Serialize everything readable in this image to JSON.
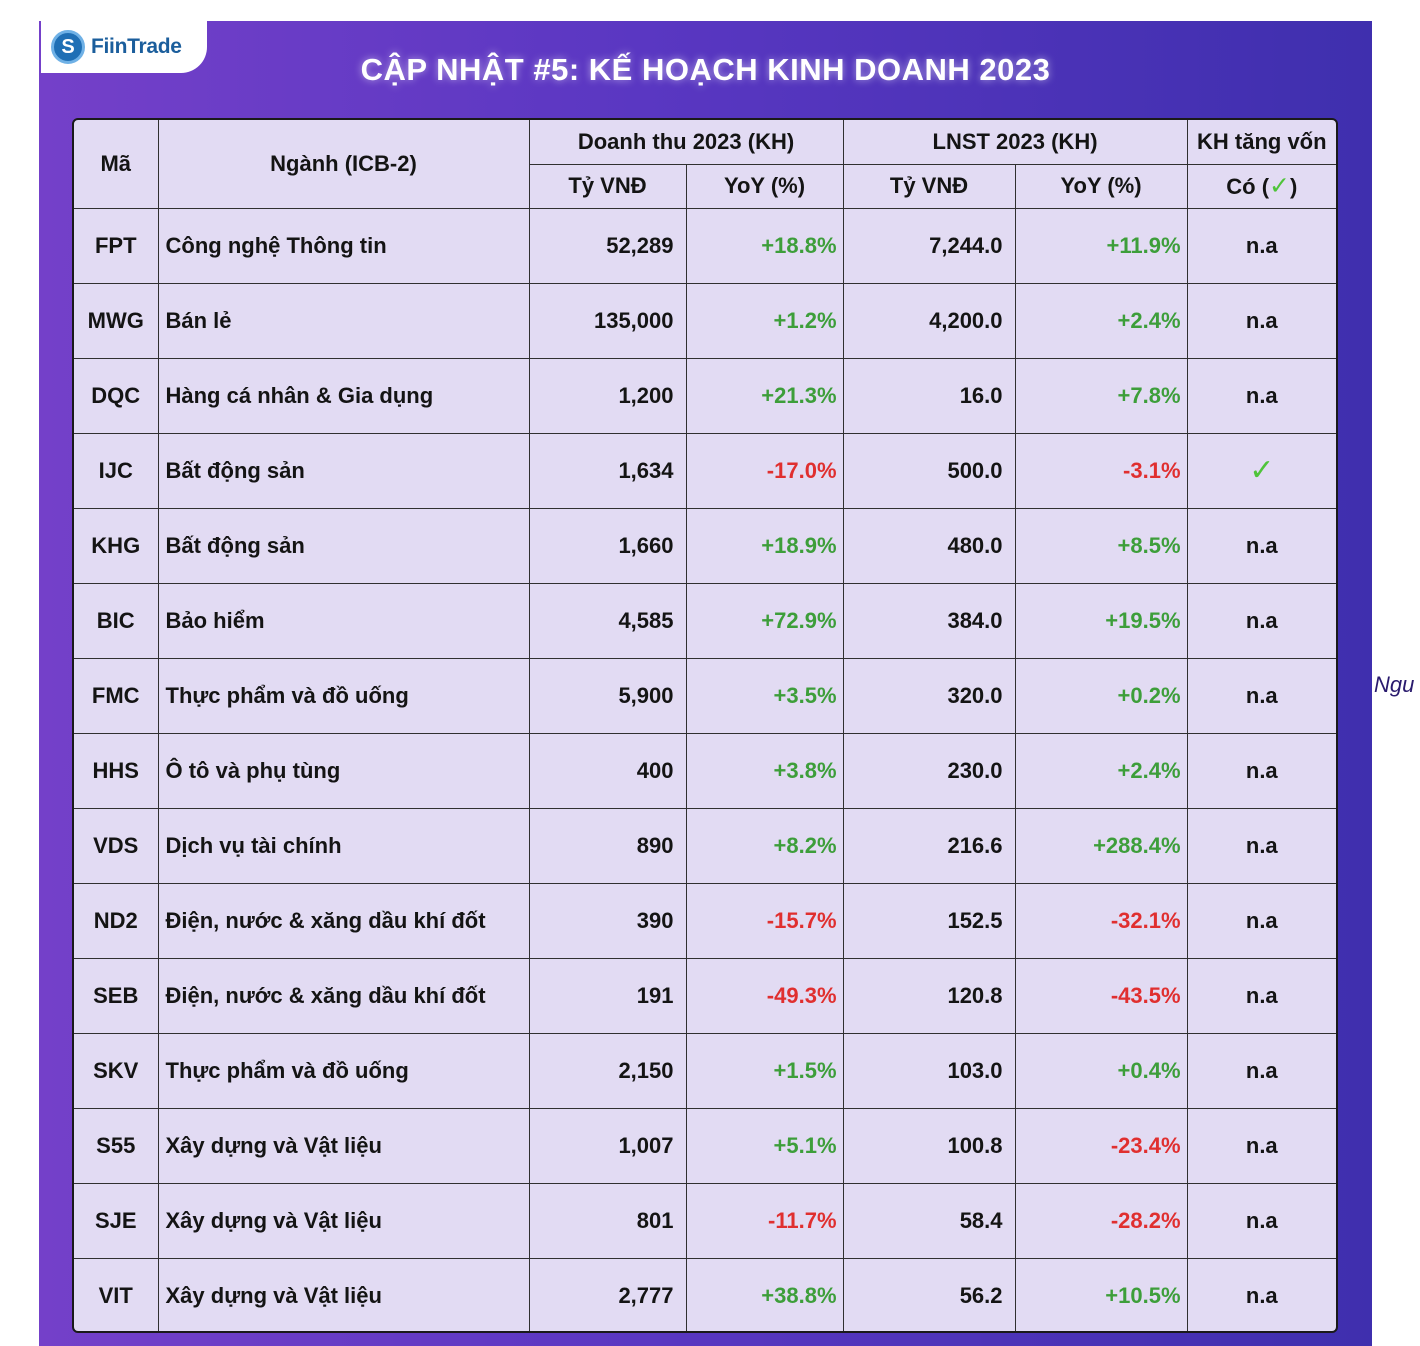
{
  "brand": {
    "name": "FiinTrade"
  },
  "title": "CẬP NHẬT #5: KẾ HOẠCH KINH DOANH 2023",
  "side_note": "Ngu",
  "table": {
    "headers": {
      "code": "Mã",
      "industry": "Ngành (ICB-2)",
      "revenue": "Doanh thu 2023 (KH)",
      "profit": "LNST 2023 (KH)",
      "capital": "KH tăng vốn",
      "unit": "Tỷ VNĐ",
      "yoy": "YoY (%)",
      "capital_sub_prefix": "Có (",
      "capital_sub_suffix": ")",
      "check_icon": "✓"
    },
    "rows": [
      {
        "code": "FPT",
        "industry": "Công nghệ Thông tin",
        "rev": "52,289",
        "rev_yoy": "+18.8%",
        "rev_sign": "pos",
        "np": "7,244.0",
        "np_yoy": "+11.9%",
        "np_sign": "pos",
        "cap": "n.a"
      },
      {
        "code": "MWG",
        "industry": "Bán lẻ",
        "rev": "135,000",
        "rev_yoy": "+1.2%",
        "rev_sign": "pos",
        "np": "4,200.0",
        "np_yoy": "+2.4%",
        "np_sign": "pos",
        "cap": "n.a"
      },
      {
        "code": "DQC",
        "industry": "Hàng cá nhân & Gia dụng",
        "rev": "1,200",
        "rev_yoy": "+21.3%",
        "rev_sign": "pos",
        "np": "16.0",
        "np_yoy": "+7.8%",
        "np_sign": "pos",
        "cap": "n.a"
      },
      {
        "code": "IJC",
        "industry": "Bất động sản",
        "rev": "1,634",
        "rev_yoy": "-17.0%",
        "rev_sign": "neg",
        "np": "500.0",
        "np_yoy": "-3.1%",
        "np_sign": "neg",
        "cap": "✓"
      },
      {
        "code": "KHG",
        "industry": "Bất động sản",
        "rev": "1,660",
        "rev_yoy": "+18.9%",
        "rev_sign": "pos",
        "np": "480.0",
        "np_yoy": "+8.5%",
        "np_sign": "pos",
        "cap": "n.a"
      },
      {
        "code": "BIC",
        "industry": "Bảo hiểm",
        "rev": "4,585",
        "rev_yoy": "+72.9%",
        "rev_sign": "pos",
        "np": "384.0",
        "np_yoy": "+19.5%",
        "np_sign": "pos",
        "cap": "n.a"
      },
      {
        "code": "FMC",
        "industry": "Thực phẩm và đồ uống",
        "rev": "5,900",
        "rev_yoy": "+3.5%",
        "rev_sign": "pos",
        "np": "320.0",
        "np_yoy": "+0.2%",
        "np_sign": "pos",
        "cap": "n.a"
      },
      {
        "code": "HHS",
        "industry": "Ô tô và phụ tùng",
        "rev": "400",
        "rev_yoy": "+3.8%",
        "rev_sign": "pos",
        "np": "230.0",
        "np_yoy": "+2.4%",
        "np_sign": "pos",
        "cap": "n.a"
      },
      {
        "code": "VDS",
        "industry": "Dịch vụ tài chính",
        "rev": "890",
        "rev_yoy": "+8.2%",
        "rev_sign": "pos",
        "np": "216.6",
        "np_yoy": "+288.4%",
        "np_sign": "pos",
        "cap": "n.a"
      },
      {
        "code": "ND2",
        "industry": "Điện, nước & xăng dầu khí đốt",
        "rev": "390",
        "rev_yoy": "-15.7%",
        "rev_sign": "neg",
        "np": "152.5",
        "np_yoy": "-32.1%",
        "np_sign": "neg",
        "cap": "n.a"
      },
      {
        "code": "SEB",
        "industry": "Điện, nước & xăng dầu khí đốt",
        "rev": "191",
        "rev_yoy": "-49.3%",
        "rev_sign": "neg",
        "np": "120.8",
        "np_yoy": "-43.5%",
        "np_sign": "neg",
        "cap": "n.a"
      },
      {
        "code": "SKV",
        "industry": "Thực phẩm và đồ uống",
        "rev": "2,150",
        "rev_yoy": "+1.5%",
        "rev_sign": "pos",
        "np": "103.0",
        "np_yoy": "+0.4%",
        "np_sign": "pos",
        "cap": "n.a"
      },
      {
        "code": "S55",
        "industry": "Xây dựng và Vật liệu",
        "rev": "1,007",
        "rev_yoy": "+5.1%",
        "rev_sign": "pos",
        "np": "100.8",
        "np_yoy": "-23.4%",
        "np_sign": "neg",
        "cap": "n.a"
      },
      {
        "code": "SJE",
        "industry": "Xây dựng và Vật liệu",
        "rev": "801",
        "rev_yoy": "-11.7%",
        "rev_sign": "neg",
        "np": "58.4",
        "np_yoy": "-28.2%",
        "np_sign": "neg",
        "cap": "n.a"
      },
      {
        "code": "VIT",
        "industry": "Xây dựng và Vật liệu",
        "rev": "2,777",
        "rev_yoy": "+38.8%",
        "rev_sign": "pos",
        "np": "56.2",
        "np_yoy": "+10.5%",
        "np_sign": "pos",
        "cap": "n.a"
      }
    ]
  },
  "colors": {
    "positive": "#3d9e3a",
    "negative": "#e02f2f",
    "table_bg": "#e2dbf3",
    "panel_left": "#7440c9",
    "panel_right": "#3f2fae"
  }
}
